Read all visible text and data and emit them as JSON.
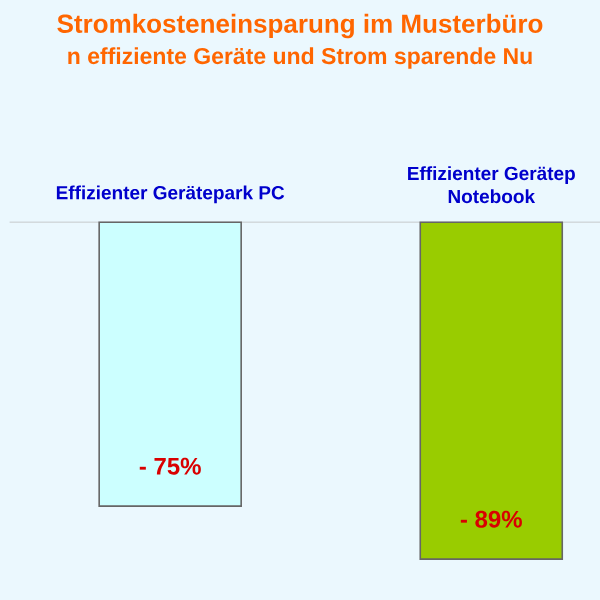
{
  "chart_data": {
    "type": "bar",
    "title": "Stromkosteneinsparung im Musterbüro",
    "subtitle": "n effiziente Geräte und Strom sparende Nu",
    "categories": [
      "Effizienter Gerätepark PC",
      "Effizienter Gerätep Notebook"
    ],
    "values": [
      -75,
      -89
    ],
    "colors": [
      "#ccffff",
      "#99cc00"
    ],
    "value_labels": [
      "- 75%",
      "- 89%"
    ]
  }
}
